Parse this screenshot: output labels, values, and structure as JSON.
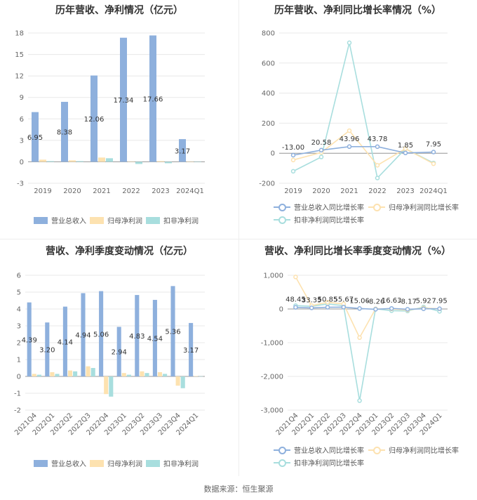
{
  "footer": "数据来源：恒生聚源",
  "colors": {
    "revenue": "#8eb0dd",
    "net_profit": "#fde2b0",
    "deducted": "#a8dede"
  },
  "chart_data": [
    {
      "id": "c1",
      "type": "bar",
      "title": "历年营收、净利情况（亿元）",
      "categories": [
        "2019",
        "2020",
        "2021",
        "2022",
        "2023",
        "2024Q1"
      ],
      "ylim": [
        -3,
        18
      ],
      "yticks": [
        -3,
        0,
        3,
        6,
        9,
        12,
        15,
        18
      ],
      "grid": true,
      "legend": "bottom",
      "series": [
        {
          "name": "营业总收入",
          "values": [
            6.95,
            8.38,
            12.06,
            17.34,
            17.66,
            3.17
          ],
          "color": "#8eb0dd"
        },
        {
          "name": "归母净利润",
          "values": [
            0.3,
            0.2,
            0.6,
            0.05,
            0.1,
            0.02
          ],
          "color": "#fde2b0"
        },
        {
          "name": "扣非净利润",
          "values": [
            0.1,
            0.1,
            0.5,
            -0.3,
            -0.2,
            0.01
          ],
          "color": "#a8dede"
        }
      ],
      "data_labels": [
        "6.95",
        "8.38",
        "12.06",
        "17.34",
        "17.66",
        "3.17"
      ]
    },
    {
      "id": "c2",
      "type": "line",
      "title": "历年营收、净利同比增长率情况（%）",
      "categories": [
        "2019",
        "2020",
        "2021",
        "2022",
        "2023",
        "2024Q1"
      ],
      "ylim": [
        -200,
        800
      ],
      "yticks": [
        -200,
        0,
        200,
        400,
        600,
        800
      ],
      "grid": true,
      "legend": "bottom",
      "series": [
        {
          "name": "营业总收入同比增长率",
          "values": [
            -13.0,
            20.58,
            43.96,
            43.78,
            1.85,
            7.95
          ],
          "color": "#8eb0dd"
        },
        {
          "name": "归母净利润同比增长率",
          "values": [
            -45,
            5,
            150,
            -80,
            30,
            -70
          ],
          "color": "#fde2b0"
        },
        {
          "name": "扣非净利润同比增长率",
          "values": [
            -120,
            -25,
            735,
            -165,
            30,
            -65
          ],
          "color": "#a8dede"
        }
      ],
      "data_labels": [
        "-13.00",
        "20.58",
        "43.96",
        "43.78",
        "1.85",
        "7.95"
      ]
    },
    {
      "id": "c3",
      "type": "bar",
      "title": "营收、净利季度变动情况（亿元）",
      "categories": [
        "2021Q4",
        "2022Q1",
        "2022Q2",
        "2022Q3",
        "2022Q4",
        "2023Q1",
        "2023Q2",
        "2023Q3",
        "2023Q4",
        "2024Q1"
      ],
      "ylim": [
        -2,
        6
      ],
      "yticks": [
        -2,
        -1,
        0,
        1,
        2,
        3,
        4,
        5,
        6
      ],
      "grid": true,
      "legend": "bottom",
      "series": [
        {
          "name": "营业总收入",
          "values": [
            4.39,
            3.2,
            4.14,
            4.94,
            5.06,
            2.94,
            4.83,
            4.54,
            5.36,
            3.17
          ],
          "color": "#8eb0dd"
        },
        {
          "name": "归母净利润",
          "values": [
            0.15,
            0.25,
            0.35,
            0.6,
            -1.05,
            0.2,
            0.3,
            0.25,
            -0.55,
            0.02
          ],
          "color": "#fde2b0"
        },
        {
          "name": "扣非净利润",
          "values": [
            0.1,
            0.15,
            0.3,
            0.5,
            -1.2,
            0.1,
            0.2,
            0.15,
            -0.7,
            0.01
          ],
          "color": "#a8dede"
        }
      ],
      "data_labels": [
        "4.39",
        "3.20",
        "4.14",
        "4.94",
        "5.06",
        "2.94",
        "4.83",
        "4.54",
        "5.36",
        "3.17"
      ]
    },
    {
      "id": "c4",
      "type": "line",
      "title": "营收、净利同比增长率季度变动情况（%）",
      "categories": [
        "2021Q4",
        "2022Q1",
        "2022Q2",
        "2022Q3",
        "2022Q4",
        "2023Q1",
        "2023Q2",
        "2023Q3",
        "2023Q4",
        "2024Q1"
      ],
      "ylim": [
        -3000,
        1000
      ],
      "yticks": [
        -3000,
        -2000,
        -1000,
        0,
        1000
      ],
      "ytick_labels": [
        "-3,000",
        "-2,000",
        "-1,000",
        "0",
        "1,000"
      ],
      "grid": true,
      "legend": "bottom",
      "series": [
        {
          "name": "营业总收入同比增长率",
          "values": [
            48.45,
            33.35,
            50.85,
            55.67,
            15.06,
            -8.26,
            16.63,
            -8.17,
            5.92,
            7.95
          ],
          "color": "#8eb0dd"
        },
        {
          "name": "归母净利润同比增长率",
          "values": [
            950,
            100,
            200,
            150,
            -850,
            5,
            0,
            -30,
            30,
            5
          ],
          "color": "#fde2b0"
        },
        {
          "name": "扣非净利润同比增长率",
          "values": [
            100,
            80,
            150,
            100,
            -2720,
            5,
            -50,
            -60,
            60,
            -70
          ],
          "color": "#a8dede"
        }
      ],
      "data_labels": [
        "48.45",
        "33.35",
        "50.85",
        "55.67",
        "15.06",
        "-8.26",
        "16.63",
        "-8.17",
        "5.92",
        "7.95"
      ]
    }
  ]
}
